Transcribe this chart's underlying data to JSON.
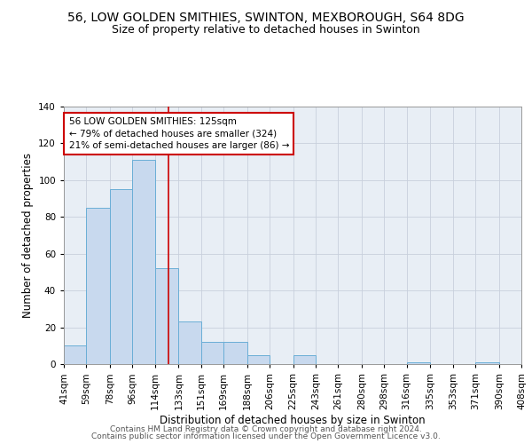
{
  "title": "56, LOW GOLDEN SMITHIES, SWINTON, MEXBOROUGH, S64 8DG",
  "subtitle": "Size of property relative to detached houses in Swinton",
  "xlabel": "Distribution of detached houses by size in Swinton",
  "ylabel": "Number of detached properties",
  "bin_labels": [
    "41sqm",
    "59sqm",
    "78sqm",
    "96sqm",
    "114sqm",
    "133sqm",
    "151sqm",
    "169sqm",
    "188sqm",
    "206sqm",
    "225sqm",
    "243sqm",
    "261sqm",
    "280sqm",
    "298sqm",
    "316sqm",
    "335sqm",
    "353sqm",
    "371sqm",
    "390sqm",
    "408sqm"
  ],
  "bin_edges": [
    41,
    59,
    78,
    96,
    114,
    133,
    151,
    169,
    188,
    206,
    225,
    243,
    261,
    280,
    298,
    316,
    335,
    353,
    371,
    390,
    408
  ],
  "bar_heights": [
    10,
    85,
    95,
    111,
    52,
    23,
    12,
    12,
    5,
    0,
    5,
    0,
    0,
    0,
    0,
    1,
    0,
    0,
    1,
    0
  ],
  "bar_color": "#c8d9ee",
  "bar_edge_color": "#6aaed6",
  "property_size": 125,
  "vline_color": "#cc0000",
  "annotation_text": "56 LOW GOLDEN SMITHIES: 125sqm\n← 79% of detached houses are smaller (324)\n21% of semi-detached houses are larger (86) →",
  "annotation_box_color": "#ffffff",
  "annotation_box_edge": "#cc0000",
  "ylim": [
    0,
    140
  ],
  "grid_color": "#c8d0dc",
  "axes_facecolor": "#e8eef5",
  "footer_line1": "Contains HM Land Registry data © Crown copyright and database right 2024.",
  "footer_line2": "Contains public sector information licensed under the Open Government Licence v3.0.",
  "title_fontsize": 10,
  "subtitle_fontsize": 9,
  "label_fontsize": 8.5,
  "tick_fontsize": 7.5,
  "annot_fontsize": 7.5,
  "footer_fontsize": 6.5
}
